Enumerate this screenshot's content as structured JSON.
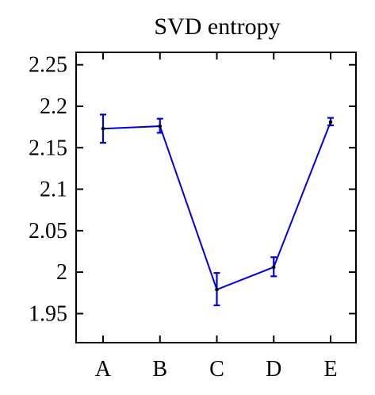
{
  "chart_data": {
    "type": "line",
    "title": "SVD entropy",
    "xlabel": "",
    "ylabel": "",
    "categories": [
      "A",
      "B",
      "C",
      "D",
      "E"
    ],
    "yticks": [
      "1.95",
      "2",
      "2.05",
      "2.1",
      "2.15",
      "2.2",
      "2.25"
    ],
    "ylim": [
      1.915,
      2.265
    ],
    "grid": false,
    "series": [
      {
        "values": [
          2.173,
          2.176,
          1.979,
          2.006,
          2.181
        ],
        "error_low": [
          2.156,
          2.168,
          1.96,
          1.995,
          2.177
        ],
        "error_high": [
          2.19,
          2.185,
          1.999,
          2.018,
          2.186
        ],
        "line_color": "#0000dd",
        "marker_color": "#000000"
      }
    ]
  }
}
